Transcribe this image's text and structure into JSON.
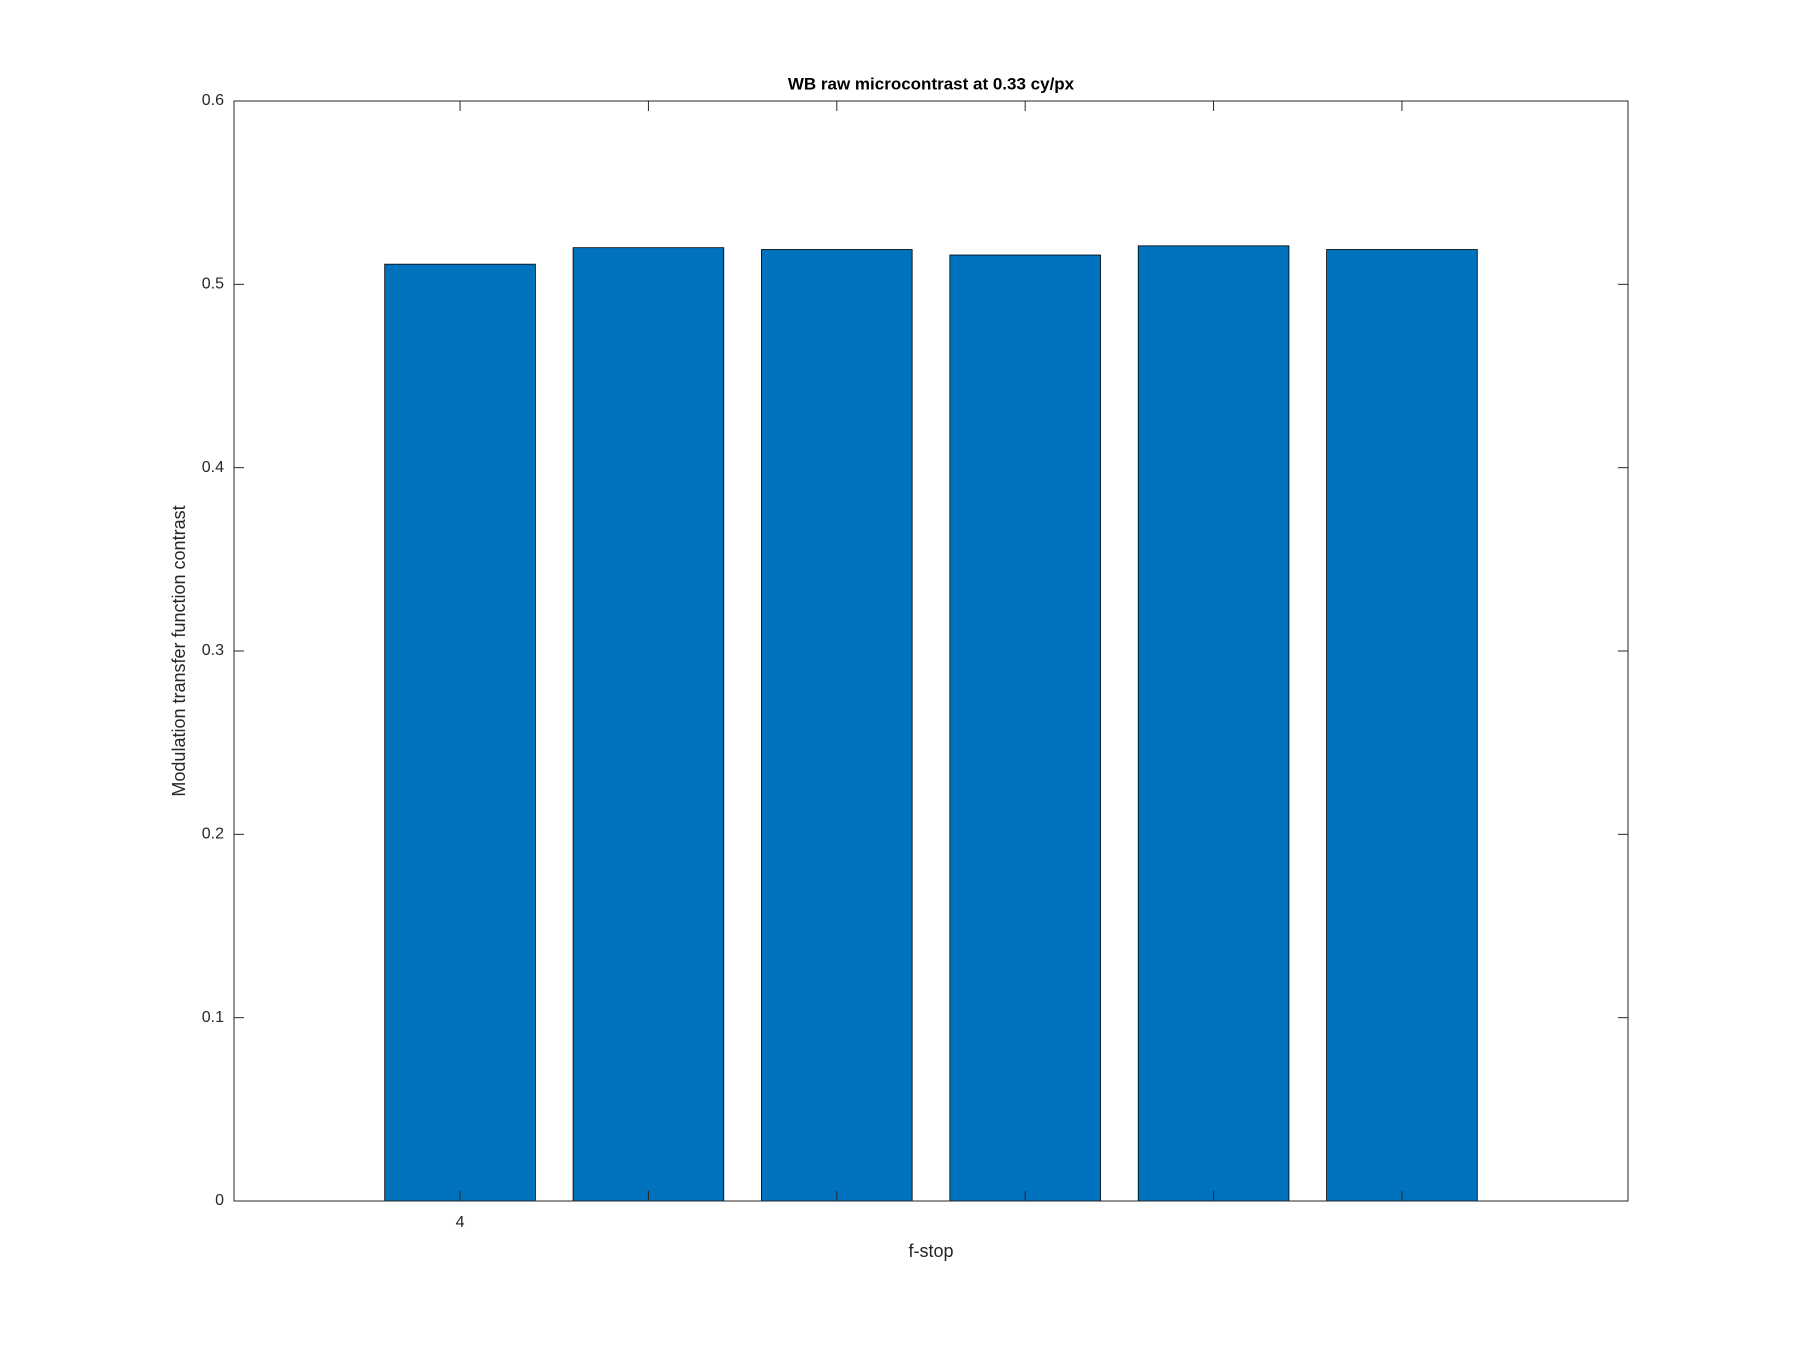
{
  "chart_data": {
    "type": "bar",
    "title": "WB raw  microcontrast at 0.33 cy/px",
    "x_label": "f-stop",
    "y_label": "Modulation transfer function contrast",
    "categories": [
      "4",
      null,
      null,
      null,
      null,
      null
    ],
    "values": [
      0.511,
      0.52,
      0.519,
      0.516,
      0.521,
      0.519
    ],
    "color": "#0072bd",
    "ylim": [
      0,
      0.6
    ],
    "yticks": [
      0,
      0.1,
      0.2,
      0.3,
      0.4,
      0.5,
      0.6
    ],
    "grid": false
  }
}
